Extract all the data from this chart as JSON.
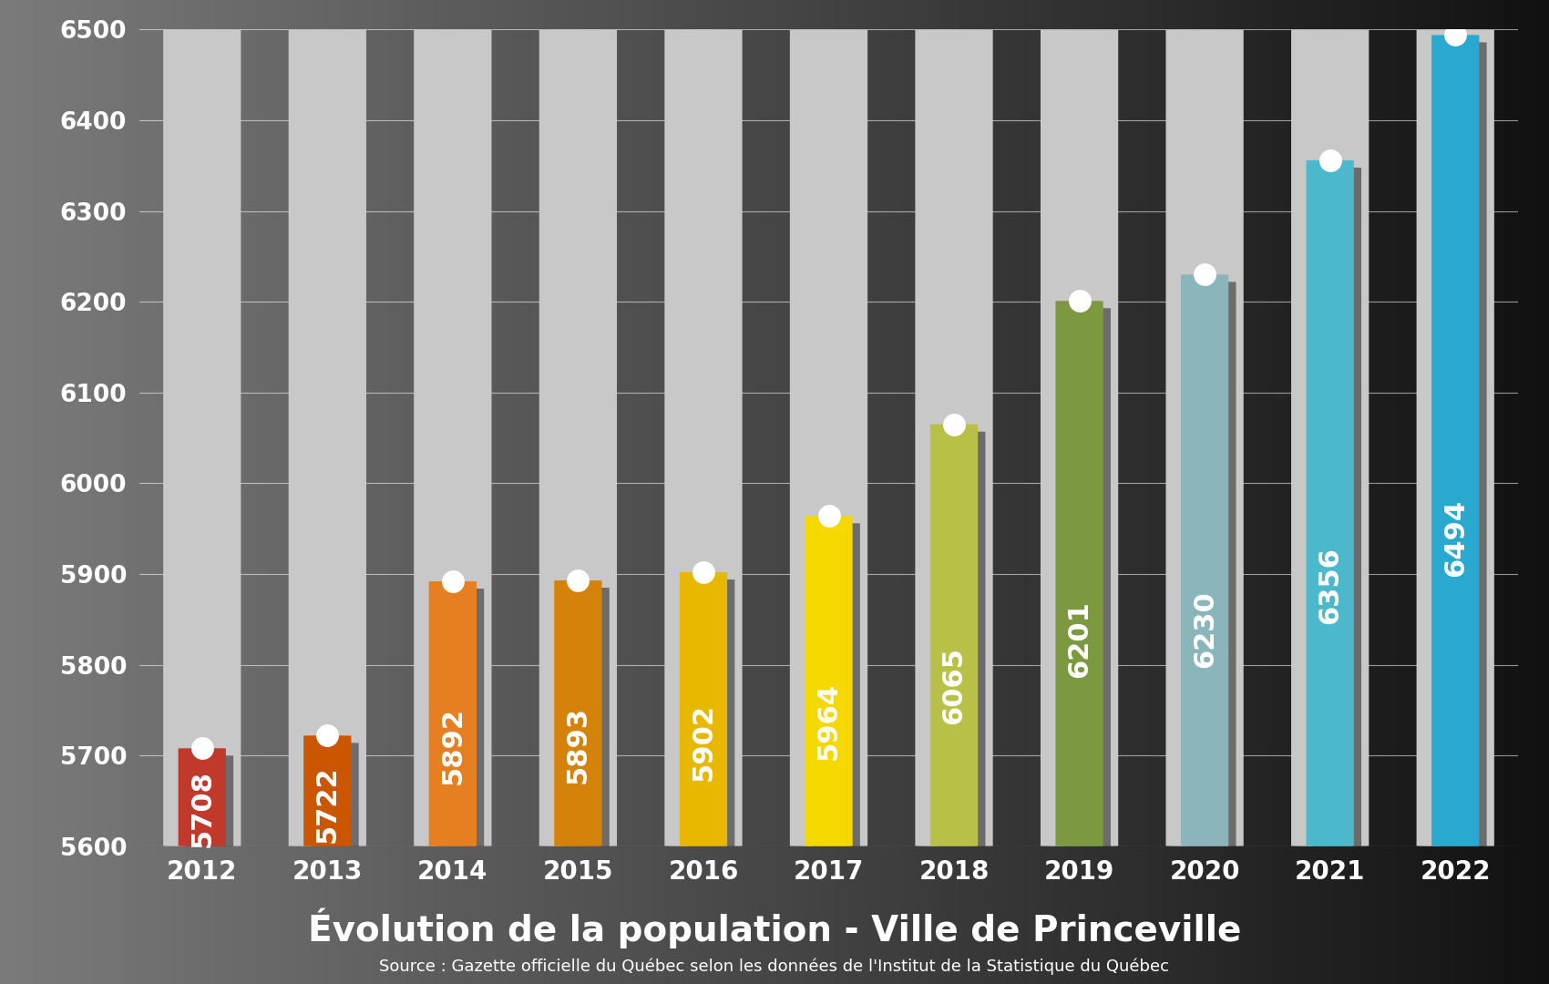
{
  "years": [
    2012,
    2013,
    2014,
    2015,
    2016,
    2017,
    2018,
    2019,
    2020,
    2021,
    2022
  ],
  "values": [
    5708,
    5722,
    5892,
    5893,
    5902,
    5964,
    6065,
    6201,
    6230,
    6356,
    6494
  ],
  "bar_colors": [
    "#c0392b",
    "#cc5500",
    "#e67e22",
    "#d4820a",
    "#e8b800",
    "#f5d800",
    "#b8c048",
    "#7d9940",
    "#8ab5bb",
    "#4bb8cc",
    "#29a8d0"
  ],
  "ghost_bar_color": "#c8c8c8",
  "shadow_color": "#3a3a3a",
  "ylim": [
    5600,
    6500
  ],
  "yticks": [
    5600,
    5700,
    5800,
    5900,
    6000,
    6100,
    6200,
    6300,
    6400,
    6500
  ],
  "title": "Évolution de la population - Ville de Princeville",
  "source": "Source : Gazette officielle du Québec selon les données de l'Institut de la Statistique du Québec",
  "title_fontsize": 28,
  "source_fontsize": 13,
  "label_fontsize": 22,
  "tick_fontsize": 19,
  "year_fontsize": 20,
  "grid_color": "#ffffff",
  "axis_text_color": "#ffffff",
  "ghost_bar_width": 0.62,
  "color_bar_width": 0.38,
  "bar_rounding": 20,
  "n_bars": 11
}
